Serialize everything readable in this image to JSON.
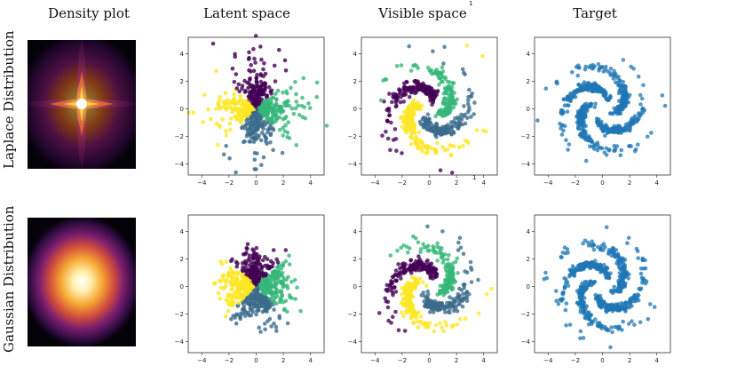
{
  "column_titles": [
    "Density plot",
    "Latent space",
    "Visible space",
    "Target"
  ],
  "row_titles": [
    "Laplace Distribution",
    "Gaussian Distribution"
  ],
  "stray_marks": [
    "1",
    "1"
  ],
  "axis": {
    "xticks": [
      -4,
      -2,
      0,
      2,
      4
    ],
    "yticks": [
      -4,
      -2,
      0,
      2,
      4
    ],
    "xlim": [
      -5,
      5
    ],
    "ylim": [
      -4.8,
      5.2
    ]
  },
  "colors": {
    "cluster_purple": "#440154",
    "cluster_blue": "#3b6b8c",
    "cluster_green": "#35b779",
    "cluster_yellow": "#fde725",
    "target_blue": "#1f77b4",
    "density_core": "#ffffff",
    "density_mid": "#f5a623",
    "density_edge": "#6a1b70",
    "density_bg": "#050209"
  },
  "chart_data": [
    {
      "type": "heatmap",
      "panel": "density-laplace",
      "distribution": "Laplace",
      "colormap": "inferno"
    },
    {
      "type": "scatter",
      "panel": "latent-laplace",
      "distribution": "Laplace",
      "n_clusters": 4,
      "cluster_colors": [
        "#440154",
        "#3b6b8c",
        "#35b779",
        "#fde725"
      ]
    },
    {
      "type": "scatter",
      "panel": "visible-laplace",
      "distribution": "Laplace",
      "shape": "4-arm pinwheel",
      "cluster_colors": [
        "#440154",
        "#3b6b8c",
        "#35b779",
        "#fde725"
      ]
    },
    {
      "type": "scatter",
      "panel": "target-laplace",
      "shape": "4-arm pinwheel",
      "color": "#1f77b4"
    },
    {
      "type": "heatmap",
      "panel": "density-gaussian",
      "distribution": "Gaussian",
      "colormap": "inferno"
    },
    {
      "type": "scatter",
      "panel": "latent-gaussian",
      "distribution": "Gaussian",
      "n_clusters": 4,
      "cluster_colors": [
        "#440154",
        "#3b6b8c",
        "#35b779",
        "#fde725"
      ]
    },
    {
      "type": "scatter",
      "panel": "visible-gaussian",
      "distribution": "Gaussian",
      "shape": "4-arm pinwheel",
      "cluster_colors": [
        "#440154",
        "#3b6b8c",
        "#35b779",
        "#fde725"
      ]
    },
    {
      "type": "scatter",
      "panel": "target-gaussian",
      "shape": "4-arm pinwheel",
      "color": "#1f77b4"
    }
  ]
}
